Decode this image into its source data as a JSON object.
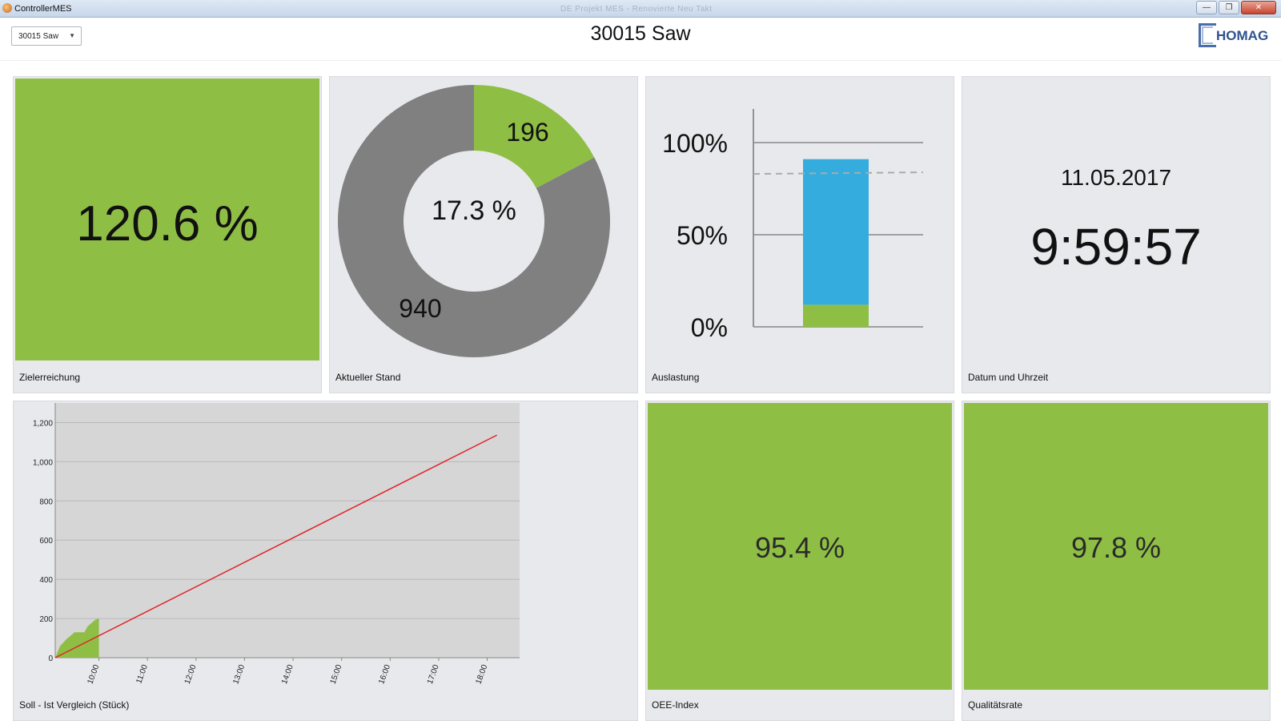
{
  "window": {
    "app_title": "ControllerMES",
    "faded_title": "DE Projekt MES - Renovierte Neu Takt",
    "minimize": "—",
    "maximize": "❐",
    "close": "✕"
  },
  "header": {
    "machine_select": "30015 Saw",
    "page_title": "30015 Saw",
    "logo_text": "HOMAG"
  },
  "tiles": {
    "zielerreichung": {
      "value": "120.6 %",
      "label": "Zielerreichung"
    },
    "aktueller_stand": {
      "done": "196",
      "remaining": "940",
      "percent": "17.3 %",
      "label": "Aktueller Stand"
    },
    "auslastung": {
      "label": "Auslastung",
      "ticks": [
        "100%",
        "50%",
        "0%"
      ]
    },
    "datum": {
      "date": "11.05.2017",
      "time": "9:59:57",
      "label": "Datum und Uhrzeit"
    },
    "soll_ist": {
      "label": "Soll - Ist Vergleich (Stück)"
    },
    "oee": {
      "value": "95.4 %",
      "label": "OEE-Index"
    },
    "qualitaet": {
      "value": "97.8 %",
      "label": "Qualitätsrate"
    }
  },
  "colors": {
    "green": "#8fbe45",
    "gray": "#808080",
    "blue": "#35acde",
    "red": "#e0242a"
  },
  "chart_data": [
    {
      "type": "pie",
      "name": "donut",
      "categories": [
        "196",
        "940"
      ],
      "values": [
        196,
        940
      ],
      "center_label": "17.3 %"
    },
    {
      "type": "bar",
      "name": "stacked",
      "stacked": true,
      "ylim": [
        0,
        100
      ],
      "yticks": [
        "0%",
        "50%",
        "100%"
      ],
      "series": [
        {
          "values": [
            12
          ]
        },
        {
          "values": [
            79
          ]
        }
      ],
      "reference_line": 83
    },
    {
      "type": "line",
      "name": "soll-ist",
      "ylim": [
        0,
        1300
      ],
      "ytick_labels": [
        "0",
        "200",
        "400",
        "600",
        "800",
        "1,000",
        "1,200"
      ],
      "yticks": [
        0,
        200,
        400,
        600,
        800,
        1000,
        1200
      ],
      "xlim": [
        "09:06",
        "18:40"
      ],
      "xtick_labels": [
        "10:00",
        "11:00",
        "12:00",
        "13:00",
        "14:00",
        "15:00",
        "16:00",
        "17:00",
        "18:00"
      ],
      "series": [
        {
          "x": [
            "09:06",
            "18:12"
          ],
          "y": [
            0,
            1136
          ]
        },
        {
          "x": [
            "09:06",
            "09:12",
            "09:20",
            "09:30",
            "09:42",
            "09:46",
            "09:56",
            "10:00"
          ],
          "y": [
            0,
            60,
            95,
            130,
            130,
            160,
            195,
            200
          ]
        }
      ]
    }
  ]
}
